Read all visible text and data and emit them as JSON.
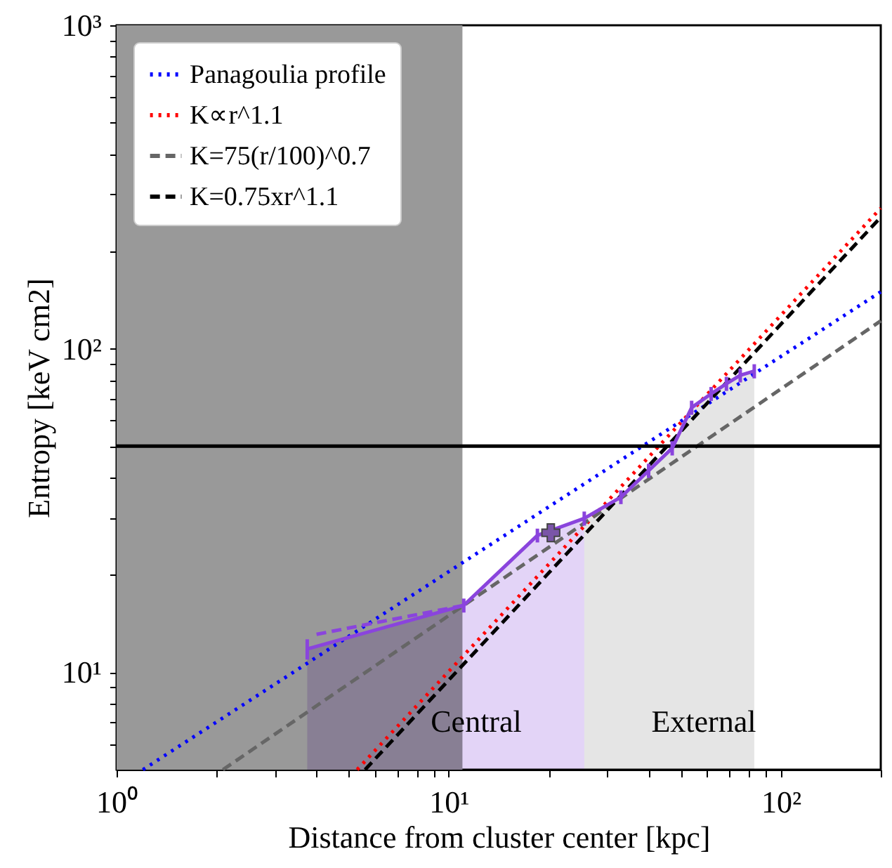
{
  "chart_data": {
    "type": "line",
    "xlabel": "Distance from cluster center [kpc]",
    "ylabel": "Entropy [keV cm2]",
    "log": "xy",
    "xlim": [
      1,
      200
    ],
    "ylim": [
      5,
      1000
    ],
    "xticks": [
      {
        "value": 1,
        "label": "10⁰"
      },
      {
        "value": 2,
        "label": null
      },
      {
        "value": 3,
        "label": null
      },
      {
        "value": 4,
        "label": null
      },
      {
        "value": 5,
        "label": null
      },
      {
        "value": 6,
        "label": null
      },
      {
        "value": 7,
        "label": null
      },
      {
        "value": 8,
        "label": null
      },
      {
        "value": 9,
        "label": null
      },
      {
        "value": 10,
        "label": "10¹"
      },
      {
        "value": 20,
        "label": null
      },
      {
        "value": 30,
        "label": null
      },
      {
        "value": 40,
        "label": null
      },
      {
        "value": 50,
        "label": null
      },
      {
        "value": 60,
        "label": null
      },
      {
        "value": 70,
        "label": null
      },
      {
        "value": 80,
        "label": null
      },
      {
        "value": 90,
        "label": null
      },
      {
        "value": 100,
        "label": "10²"
      },
      {
        "value": 200,
        "label": null
      }
    ],
    "yticks": [
      {
        "value": 6,
        "label": null
      },
      {
        "value": 7,
        "label": null
      },
      {
        "value": 8,
        "label": null
      },
      {
        "value": 9,
        "label": null
      },
      {
        "value": 10,
        "label": "10¹"
      },
      {
        "value": 20,
        "label": null
      },
      {
        "value": 30,
        "label": null
      },
      {
        "value": 40,
        "label": null
      },
      {
        "value": 50,
        "label": null
      },
      {
        "value": 60,
        "label": null
      },
      {
        "value": 70,
        "label": null
      },
      {
        "value": 80,
        "label": null
      },
      {
        "value": 90,
        "label": null
      },
      {
        "value": 100,
        "label": "10²"
      },
      {
        "value": 200,
        "label": null
      },
      {
        "value": 300,
        "label": null
      },
      {
        "value": 400,
        "label": null
      },
      {
        "value": 500,
        "label": null
      },
      {
        "value": 600,
        "label": null
      },
      {
        "value": 700,
        "label": null
      },
      {
        "value": 800,
        "label": null
      },
      {
        "value": 900,
        "label": null
      },
      {
        "value": 1000,
        "label": "10³"
      }
    ],
    "grid": false,
    "legend": "top left",
    "bands": [
      {
        "axis": "x",
        "from": 1,
        "to": 11,
        "color": "#999999"
      }
    ],
    "ref_lines": [
      {
        "axis": "y",
        "value": 50,
        "color": "#000000",
        "line_style": "solid"
      }
    ],
    "series": [
      {
        "type": "area",
        "color": "#e3d4f7",
        "x": [
          3.75,
          11.1,
          18.5,
          25.6
        ],
        "values": [
          11.8,
          16.1,
          26.5,
          29.9
        ]
      },
      {
        "type": "area",
        "color": "#e5e5e5",
        "x": [
          25.6,
          33,
          40,
          47.1,
          53.9,
          61.7,
          68.6,
          75.5,
          83.2
        ],
        "values": [
          29.9,
          34.8,
          42,
          49.3,
          65.8,
          72.6,
          78,
          82.8,
          85.3
        ]
      },
      {
        "name": "Panagoulia profile",
        "color": "#0000ff",
        "line_style": "dotted",
        "x": [
          1.2,
          200
        ],
        "values": [
          5,
          150
        ]
      },
      {
        "name": "K∝r^1.1",
        "color": "#ff0000",
        "line_style": "dotted",
        "x": [
          5.3,
          200
        ],
        "values": [
          5,
          272
        ]
      },
      {
        "name": "K=75(r/100)^0.7",
        "color": "#666666",
        "line_style": "dashed",
        "x": [
          2.09,
          200
        ],
        "values": [
          5,
          122
        ]
      },
      {
        "name": "K=0.75xr^1.1",
        "color": "#000000",
        "line_style": "dashed",
        "x": [
          5.6,
          200
        ],
        "values": [
          5,
          255
        ]
      },
      {
        "color": "#8a44dd",
        "line_style": "dashed",
        "x": [
          4.0,
          11.1
        ],
        "values": [
          13.1,
          16.1
        ]
      },
      {
        "color": "#8a44dd",
        "line_style": "solid",
        "x": [
          3.75,
          11.1,
          18.5,
          25.6,
          33,
          40,
          47.1,
          53.9,
          61.7,
          68.6,
          75.5,
          83.2
        ],
        "values": [
          11.8,
          16.1,
          26.5,
          29.9,
          34.8,
          42,
          49.3,
          65.8,
          72.6,
          78,
          82.8,
          85.3
        ],
        "errors": [
          0.85,
          0.8,
          1.3,
          1.5,
          1.7,
          2.1,
          2.5,
          3.3,
          3.6,
          3.9,
          4.1,
          4.3
        ]
      },
      {
        "type": "scatter",
        "color": "#7a55a8",
        "marker": "cross",
        "x": [
          20.3
        ],
        "values": [
          27
        ]
      }
    ],
    "annotations": [
      "Central",
      "External"
    ]
  }
}
